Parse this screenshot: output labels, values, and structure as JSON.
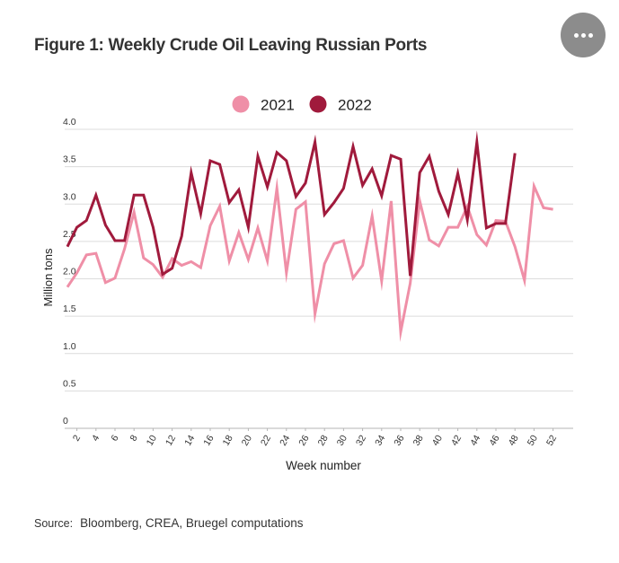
{
  "header": {
    "title": "Figure 1: Weekly Crude Oil Leaving Russian Ports",
    "menu_icon": "more-horizontal-icon"
  },
  "source": {
    "label": "Source:",
    "text": "Bloomberg, CREA, Bruegel computations"
  },
  "chart_data": {
    "type": "line",
    "title": "Figure 1: Weekly Crude Oil Leaving Russian Ports",
    "xlabel": "Week number",
    "ylabel": "Million tons",
    "ylim": [
      0,
      4.0
    ],
    "xlim": [
      1,
      52
    ],
    "yticks": [
      "0",
      "0.5",
      "1.0",
      "1.5",
      "2.0",
      "2.5",
      "3.0",
      "3.5",
      "4.0"
    ],
    "xticks": [
      "2",
      "4",
      "6",
      "8",
      "10",
      "12",
      "14",
      "16",
      "18",
      "20",
      "22",
      "24",
      "26",
      "28",
      "30",
      "32",
      "34",
      "36",
      "38",
      "40",
      "42",
      "44",
      "46",
      "48",
      "50",
      "52"
    ],
    "grid": true,
    "legend": "top-center",
    "series": [
      {
        "name": "2021",
        "color": "#ef8fa7",
        "x": [
          1,
          2,
          3,
          4,
          5,
          6,
          7,
          8,
          9,
          10,
          11,
          12,
          13,
          14,
          15,
          16,
          17,
          18,
          19,
          20,
          21,
          22,
          23,
          24,
          25,
          26,
          27,
          28,
          29,
          30,
          31,
          32,
          33,
          34,
          35,
          36,
          37,
          38,
          39,
          40,
          41,
          42,
          43,
          44,
          45,
          46,
          47,
          48,
          49,
          50,
          51,
          52
        ],
        "values": [
          1.89,
          2.08,
          2.32,
          2.34,
          1.95,
          2.01,
          2.4,
          2.89,
          2.28,
          2.19,
          2.02,
          2.27,
          2.18,
          2.23,
          2.15,
          2.71,
          2.97,
          2.24,
          2.62,
          2.26,
          2.68,
          2.24,
          3.21,
          2.08,
          2.93,
          3.03,
          1.53,
          2.2,
          2.47,
          2.51,
          2.01,
          2.18,
          2.84,
          1.97,
          3.04,
          1.29,
          1.94,
          3.04,
          2.52,
          2.44,
          2.69,
          2.69,
          2.97,
          2.59,
          2.45,
          2.78,
          2.77,
          2.43,
          1.98,
          3.24,
          2.95,
          2.93
        ]
      },
      {
        "name": "2022",
        "color": "#a01a3c",
        "x": [
          1,
          2,
          3,
          4,
          5,
          6,
          7,
          8,
          9,
          10,
          11,
          12,
          13,
          14,
          15,
          16,
          17,
          18,
          19,
          20,
          21,
          22,
          23,
          24,
          25,
          26,
          27,
          28,
          29,
          30,
          31,
          32,
          33,
          34,
          35,
          36,
          37,
          38,
          39,
          40,
          41,
          42,
          43,
          44,
          45,
          46,
          47,
          48
        ],
        "values": [
          2.43,
          2.69,
          2.78,
          3.12,
          2.72,
          2.51,
          2.51,
          3.12,
          3.12,
          2.69,
          2.06,
          2.14,
          2.57,
          3.42,
          2.87,
          3.58,
          3.53,
          3.02,
          3.19,
          2.69,
          3.64,
          3.23,
          3.69,
          3.58,
          3.1,
          3.28,
          3.83,
          2.86,
          3.02,
          3.21,
          3.77,
          3.25,
          3.47,
          3.11,
          3.65,
          3.6,
          2.04,
          3.42,
          3.64,
          3.17,
          2.86,
          3.41,
          2.79,
          3.83,
          2.68,
          2.74,
          2.74,
          3.68
        ]
      }
    ]
  }
}
